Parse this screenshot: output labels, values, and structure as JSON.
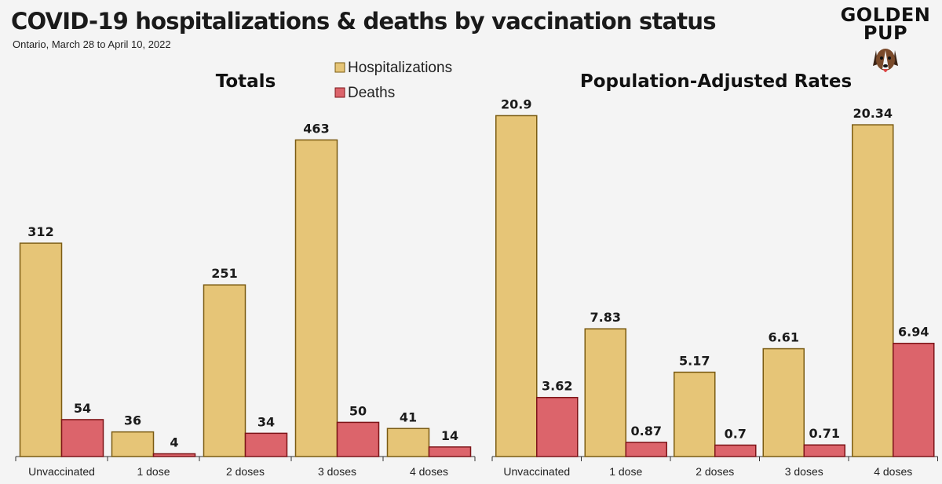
{
  "title": "COVID-19 hospitalizations & deaths by vaccination status",
  "subtitle": "Ontario, March 28 to April 10, 2022",
  "logo": {
    "line1": "GOLDEN",
    "line2": "PUP"
  },
  "colors": {
    "hosp": "#e6c577",
    "hosp_stroke": "#7a5b12",
    "death": "#dc646b",
    "death_stroke": "#7d1418"
  },
  "chart_data": [
    {
      "type": "bar",
      "title": "Totals",
      "categories": [
        "Unvaccinated",
        "1 dose",
        "2 doses",
        "3 doses",
        "4 doses"
      ],
      "series": [
        {
          "name": "Hospitalizations",
          "values": [
            312,
            36,
            251,
            463,
            41
          ],
          "labels": [
            "312",
            "36",
            "251",
            "463",
            "41"
          ]
        },
        {
          "name": "Deaths",
          "values": [
            54,
            4,
            34,
            50,
            14
          ],
          "labels": [
            "54",
            "4",
            "34",
            "50",
            "14"
          ]
        }
      ],
      "ylim": [
        0,
        530
      ],
      "legend": "top-right",
      "grid": false
    },
    {
      "type": "bar",
      "title": "Population-Adjusted Rates",
      "categories": [
        "Unvaccinated",
        "1 dose",
        "2 doses",
        "3 doses",
        "4 doses"
      ],
      "series": [
        {
          "name": "Hospitalizations",
          "values": [
            20.9,
            7.83,
            5.17,
            6.61,
            20.34
          ],
          "labels": [
            "20.9",
            "7.83",
            "5.17",
            "6.61",
            "20.34"
          ]
        },
        {
          "name": "Deaths",
          "values": [
            3.62,
            0.87,
            0.7,
            0.71,
            6.94
          ],
          "labels": [
            "3.62",
            "0.87",
            "0.7",
            "0.71",
            "6.94"
          ]
        }
      ],
      "ylim": [
        0,
        22.22
      ],
      "grid": false
    }
  ]
}
